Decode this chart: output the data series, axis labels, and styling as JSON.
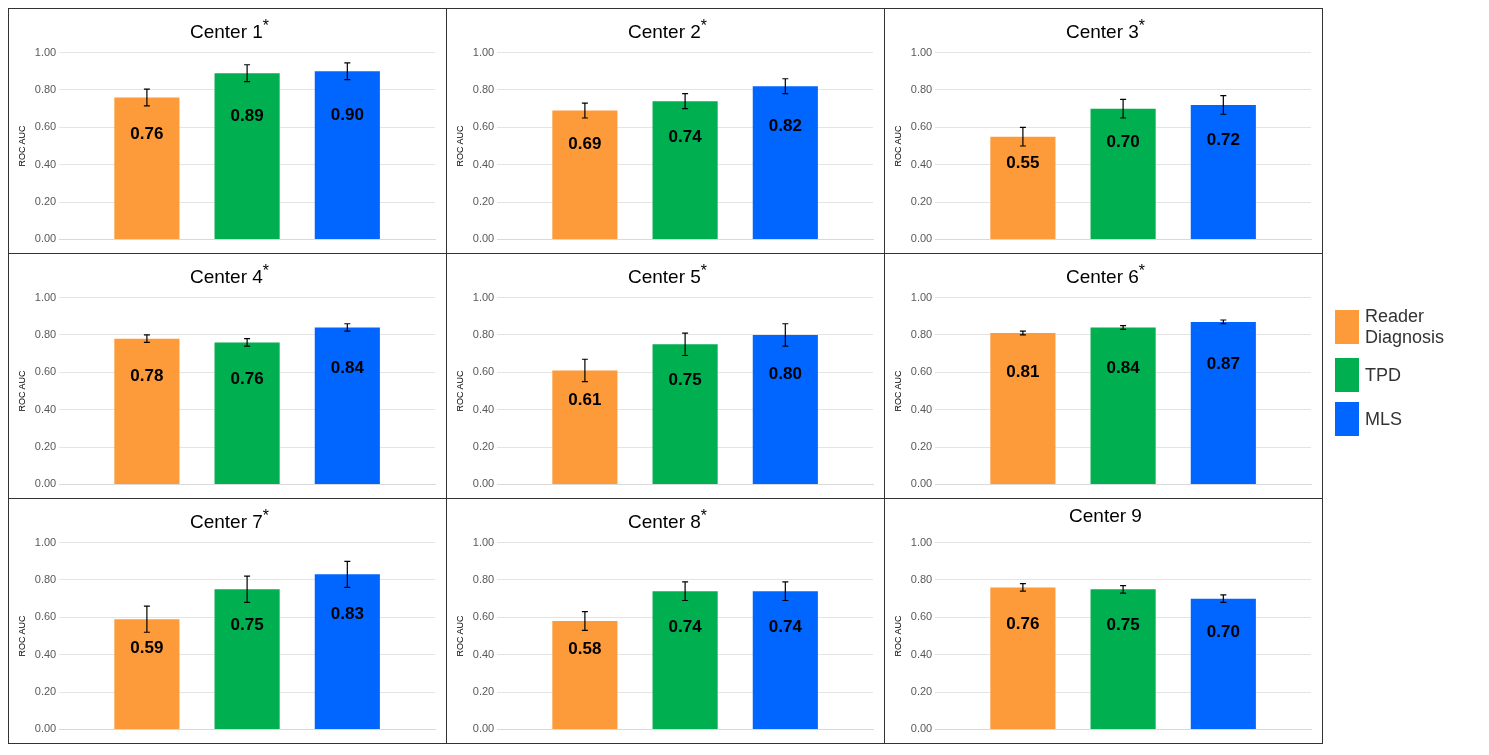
{
  "chart_data": [
    {
      "type": "bar",
      "title": "Center 1$^{*}$",
      "ylabel": "ROC AUC",
      "categories": [
        null
      ],
      "series": [
        {
          "color": "#fd9a3a",
          "values": [
            0.76
          ],
          "errors": [
            0.045
          ],
          "value_labels": [
            "0.76"
          ]
        },
        {
          "color": "#00b050",
          "values": [
            0.89
          ],
          "errors": [
            0.045
          ],
          "value_labels": [
            "0.89"
          ]
        },
        {
          "color": "#0066ff",
          "values": [
            0.9
          ],
          "errors": [
            0.045
          ],
          "value_labels": [
            "0.90"
          ]
        }
      ],
      "ylim": [
        0,
        1
      ],
      "yticks": [
        {
          "value": 0,
          "label": "0.00"
        },
        {
          "value": 0.2,
          "label": "0.20"
        },
        {
          "value": 0.4,
          "label": "0.40"
        },
        {
          "value": 0.6,
          "label": "0.60"
        },
        {
          "value": 0.8,
          "label": "0.80"
        },
        {
          "value": 1,
          "label": "1.00"
        }
      ],
      "grid": "y"
    },
    {
      "type": "bar",
      "title": "Center 2$^{*}$",
      "ylabel": "ROC AUC",
      "categories": [
        null
      ],
      "series": [
        {
          "color": "#fd9a3a",
          "values": [
            0.69
          ],
          "errors": [
            0.04
          ],
          "value_labels": [
            "0.69"
          ]
        },
        {
          "color": "#00b050",
          "values": [
            0.74
          ],
          "errors": [
            0.04
          ],
          "value_labels": [
            "0.74"
          ]
        },
        {
          "color": "#0066ff",
          "values": [
            0.82
          ],
          "errors": [
            0.04
          ],
          "value_labels": [
            "0.82"
          ]
        }
      ],
      "ylim": [
        0,
        1
      ],
      "yticks": [
        {
          "value": 0,
          "label": "0.00"
        },
        {
          "value": 0.2,
          "label": "0.20"
        },
        {
          "value": 0.4,
          "label": "0.40"
        },
        {
          "value": 0.6,
          "label": "0.60"
        },
        {
          "value": 0.8,
          "label": "0.80"
        },
        {
          "value": 1,
          "label": "1.00"
        }
      ],
      "grid": "y"
    },
    {
      "type": "bar",
      "title": "Center 3$^{*}$",
      "ylabel": "ROC AUC",
      "categories": [
        null
      ],
      "series": [
        {
          "color": "#fd9a3a",
          "values": [
            0.55
          ],
          "errors": [
            0.05
          ],
          "value_labels": [
            "0.55"
          ]
        },
        {
          "color": "#00b050",
          "values": [
            0.7
          ],
          "errors": [
            0.05
          ],
          "value_labels": [
            "0.70"
          ]
        },
        {
          "color": "#0066ff",
          "values": [
            0.72
          ],
          "errors": [
            0.05
          ],
          "value_labels": [
            "0.72"
          ]
        }
      ],
      "ylim": [
        0,
        1
      ],
      "yticks": [
        {
          "value": 0,
          "label": "0.00"
        },
        {
          "value": 0.2,
          "label": "0.20"
        },
        {
          "value": 0.4,
          "label": "0.40"
        },
        {
          "value": 0.6,
          "label": "0.60"
        },
        {
          "value": 0.8,
          "label": "0.80"
        },
        {
          "value": 1,
          "label": "1.00"
        }
      ],
      "grid": "y"
    },
    {
      "type": "bar",
      "title": "Center 4$^{*}$",
      "ylabel": "ROC AUC",
      "categories": [
        null
      ],
      "series": [
        {
          "color": "#fd9a3a",
          "values": [
            0.78
          ],
          "errors": [
            0.02
          ],
          "value_labels": [
            "0.78"
          ]
        },
        {
          "color": "#00b050",
          "values": [
            0.76
          ],
          "errors": [
            0.02
          ],
          "value_labels": [
            "0.76"
          ]
        },
        {
          "color": "#0066ff",
          "values": [
            0.84
          ],
          "errors": [
            0.02
          ],
          "value_labels": [
            "0.84"
          ]
        }
      ],
      "ylim": [
        0,
        1
      ],
      "yticks": [
        {
          "value": 0,
          "label": "0.00"
        },
        {
          "value": 0.2,
          "label": "0.20"
        },
        {
          "value": 0.4,
          "label": "0.40"
        },
        {
          "value": 0.6,
          "label": "0.60"
        },
        {
          "value": 0.8,
          "label": "0.80"
        },
        {
          "value": 1,
          "label": "1.00"
        }
      ],
      "grid": "y"
    },
    {
      "type": "bar",
      "title": "Center 5$^{*}$",
      "ylabel": "ROC AUC",
      "categories": [
        null
      ],
      "series": [
        {
          "color": "#fd9a3a",
          "values": [
            0.61
          ],
          "errors": [
            0.06
          ],
          "value_labels": [
            "0.61"
          ]
        },
        {
          "color": "#00b050",
          "values": [
            0.75
          ],
          "errors": [
            0.06
          ],
          "value_labels": [
            "0.75"
          ]
        },
        {
          "color": "#0066ff",
          "values": [
            0.8
          ],
          "errors": [
            0.06
          ],
          "value_labels": [
            "0.80"
          ]
        }
      ],
      "ylim": [
        0,
        1
      ],
      "yticks": [
        {
          "value": 0,
          "label": "0.00"
        },
        {
          "value": 0.2,
          "label": "0.20"
        },
        {
          "value": 0.4,
          "label": "0.40"
        },
        {
          "value": 0.6,
          "label": "0.60"
        },
        {
          "value": 0.8,
          "label": "0.80"
        },
        {
          "value": 1,
          "label": "1.00"
        }
      ],
      "grid": "y"
    },
    {
      "type": "bar",
      "title": "Center 6$^{*}$",
      "ylabel": "ROC AUC",
      "categories": [
        null
      ],
      "series": [
        {
          "name": "Reader Diagnosis",
          "color": "#fd9a3a",
          "values": [
            0.81
          ],
          "errors": [
            0.01
          ],
          "value_labels": [
            "0.81"
          ]
        },
        {
          "name": "TPD",
          "color": "#00b050",
          "values": [
            0.84
          ],
          "errors": [
            0.01
          ],
          "value_labels": [
            "0.84"
          ]
        },
        {
          "name": "MLS",
          "color": "#0066ff",
          "values": [
            0.87
          ],
          "errors": [
            0.01
          ],
          "value_labels": [
            "0.87"
          ]
        }
      ],
      "ylim": [
        0,
        1
      ],
      "yticks": [
        {
          "value": 0,
          "label": "0.00"
        },
        {
          "value": 0.2,
          "label": "0.20"
        },
        {
          "value": 0.4,
          "label": "0.40"
        },
        {
          "value": 0.6,
          "label": "0.60"
        },
        {
          "value": 0.8,
          "label": "0.80"
        },
        {
          "value": 1,
          "label": "1.00"
        }
      ],
      "grid": "y",
      "legend": "right"
    },
    {
      "type": "bar",
      "title": "Center 7$^{*}$",
      "ylabel": "ROC AUC",
      "categories": [
        null
      ],
      "series": [
        {
          "color": "#fd9a3a",
          "values": [
            0.59
          ],
          "errors": [
            0.07
          ],
          "value_labels": [
            "0.59"
          ]
        },
        {
          "color": "#00b050",
          "values": [
            0.75
          ],
          "errors": [
            0.07
          ],
          "value_labels": [
            "0.75"
          ]
        },
        {
          "color": "#0066ff",
          "values": [
            0.83
          ],
          "errors": [
            0.07
          ],
          "value_labels": [
            "0.83"
          ]
        }
      ],
      "ylim": [
        0,
        1
      ],
      "yticks": [
        {
          "value": 0,
          "label": "0.00"
        },
        {
          "value": 0.2,
          "label": "0.20"
        },
        {
          "value": 0.4,
          "label": "0.40"
        },
        {
          "value": 0.6,
          "label": "0.60"
        },
        {
          "value": 0.8,
          "label": "0.80"
        },
        {
          "value": 1,
          "label": "1.00"
        }
      ],
      "grid": "y"
    },
    {
      "type": "bar",
      "title": "Center 8$^{*}$",
      "ylabel": "ROC AUC",
      "categories": [
        null
      ],
      "series": [
        {
          "color": "#fd9a3a",
          "values": [
            0.58
          ],
          "errors": [
            0.05
          ],
          "value_labels": [
            "0.58"
          ]
        },
        {
          "color": "#00b050",
          "values": [
            0.74
          ],
          "errors": [
            0.05
          ],
          "value_labels": [
            "0.74"
          ]
        },
        {
          "color": "#0066ff",
          "values": [
            0.74
          ],
          "errors": [
            0.05
          ],
          "value_labels": [
            "0.74"
          ]
        }
      ],
      "ylim": [
        0,
        1
      ],
      "yticks": [
        {
          "value": 0,
          "label": "0.00"
        },
        {
          "value": 0.2,
          "label": "0.20"
        },
        {
          "value": 0.4,
          "label": "0.40"
        },
        {
          "value": 0.6,
          "label": "0.60"
        },
        {
          "value": 0.8,
          "label": "0.80"
        },
        {
          "value": 1,
          "label": "1.00"
        }
      ],
      "grid": "y"
    },
    {
      "type": "bar",
      "title": "Center 9",
      "ylabel": "ROC AUC",
      "categories": [
        null
      ],
      "series": [
        {
          "color": "#fd9a3a",
          "values": [
            0.76
          ],
          "errors": [
            0.02
          ],
          "value_labels": [
            "0.76"
          ]
        },
        {
          "color": "#00b050",
          "values": [
            0.75
          ],
          "errors": [
            0.02
          ],
          "value_labels": [
            "0.75"
          ]
        },
        {
          "color": "#0066ff",
          "values": [
            0.7
          ],
          "errors": [
            0.02
          ],
          "value_labels": [
            "0.70"
          ]
        }
      ],
      "ylim": [
        0,
        1
      ],
      "yticks": [
        {
          "value": 0,
          "label": "0.00"
        },
        {
          "value": 0.2,
          "label": "0.20"
        },
        {
          "value": 0.4,
          "label": "0.40"
        },
        {
          "value": 0.6,
          "label": "0.60"
        },
        {
          "value": 0.8,
          "label": "0.80"
        },
        {
          "value": 1,
          "label": "1.00"
        }
      ],
      "grid": "y"
    }
  ]
}
